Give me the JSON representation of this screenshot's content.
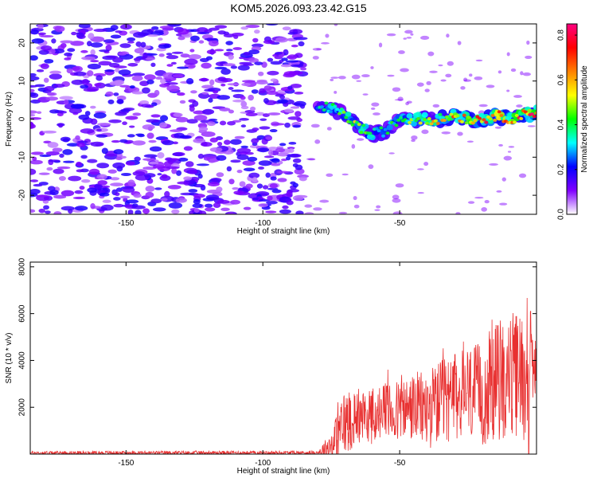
{
  "title": "KOM5.2026.093.23.42.G15",
  "chart_data": [
    {
      "type": "heatmap",
      "name": "spectrogram",
      "xlabel": "Height of straight line (km)",
      "ylabel": "Frequency (Hz)",
      "xlim": [
        -185,
        0
      ],
      "ylim": [
        -25,
        25
      ],
      "xticks": [
        -150,
        -100,
        -50
      ],
      "yticks": [
        -20,
        -10,
        0,
        10,
        20
      ],
      "colorbar": {
        "label": "Normalized spectral amplitude",
        "range": [
          0,
          0.85
        ],
        "ticks": [
          "0.0",
          "0.2",
          "0.4",
          "0.6",
          "0.8"
        ],
        "tick_values": [
          0.0,
          0.2,
          0.4,
          0.6,
          0.8
        ],
        "colors": [
          "#ffffff",
          "#8000ff",
          "#0000ff",
          "#00ffff",
          "#00ff00",
          "#ffff00",
          "#ff8000",
          "#ff0000",
          "#ff0080"
        ]
      },
      "signal_track": {
        "x": [
          -80,
          -75,
          -70,
          -65,
          -60,
          -55,
          -50,
          -45,
          -40,
          -35,
          -30,
          -25,
          -20,
          -15,
          -10,
          -5,
          0
        ],
        "frequency": [
          3,
          3,
          1,
          -2,
          -4,
          -3,
          0,
          0,
          0,
          0,
          1,
          0,
          0,
          1,
          0,
          1,
          2
        ],
        "amplitude": [
          0.3,
          0.4,
          0.45,
          0.5,
          0.4,
          0.35,
          0.4,
          0.45,
          0.5,
          0.55,
          0.6,
          0.62,
          0.65,
          0.7,
          0.65,
          0.75,
          0.7
        ]
      },
      "noise_region": {
        "x_range": [
          -185,
          -85
        ],
        "amplitude": 0.2
      }
    },
    {
      "type": "line",
      "name": "snr",
      "xlabel": "Height of straight line (km)",
      "ylabel": "SNR (10 * v/v)",
      "xlim": [
        -185,
        0
      ],
      "ylim": [
        0,
        8200
      ],
      "xticks": [
        -150,
        -100,
        -50
      ],
      "yticks": [
        2000,
        4000,
        6000,
        8000
      ],
      "color": "#e83030",
      "envelope": {
        "x": [
          -185,
          -80,
          -75,
          -70,
          -65,
          -60,
          -55,
          -50,
          -45,
          -40,
          -35,
          -30,
          -25,
          -20,
          -15,
          -10,
          -5,
          -3,
          -1,
          0
        ],
        "mean": [
          50,
          60,
          400,
          1400,
          1700,
          1600,
          1800,
          1800,
          2000,
          1900,
          2200,
          2400,
          2600,
          2500,
          3100,
          3300,
          3400,
          3700,
          3600,
          3500
        ],
        "spread": [
          80,
          80,
          600,
          1500,
          1200,
          1200,
          1300,
          1400,
          1500,
          1700,
          1800,
          1900,
          2100,
          2200,
          2600,
          2700,
          2800,
          4400,
          1000,
          1000
        ]
      }
    }
  ]
}
